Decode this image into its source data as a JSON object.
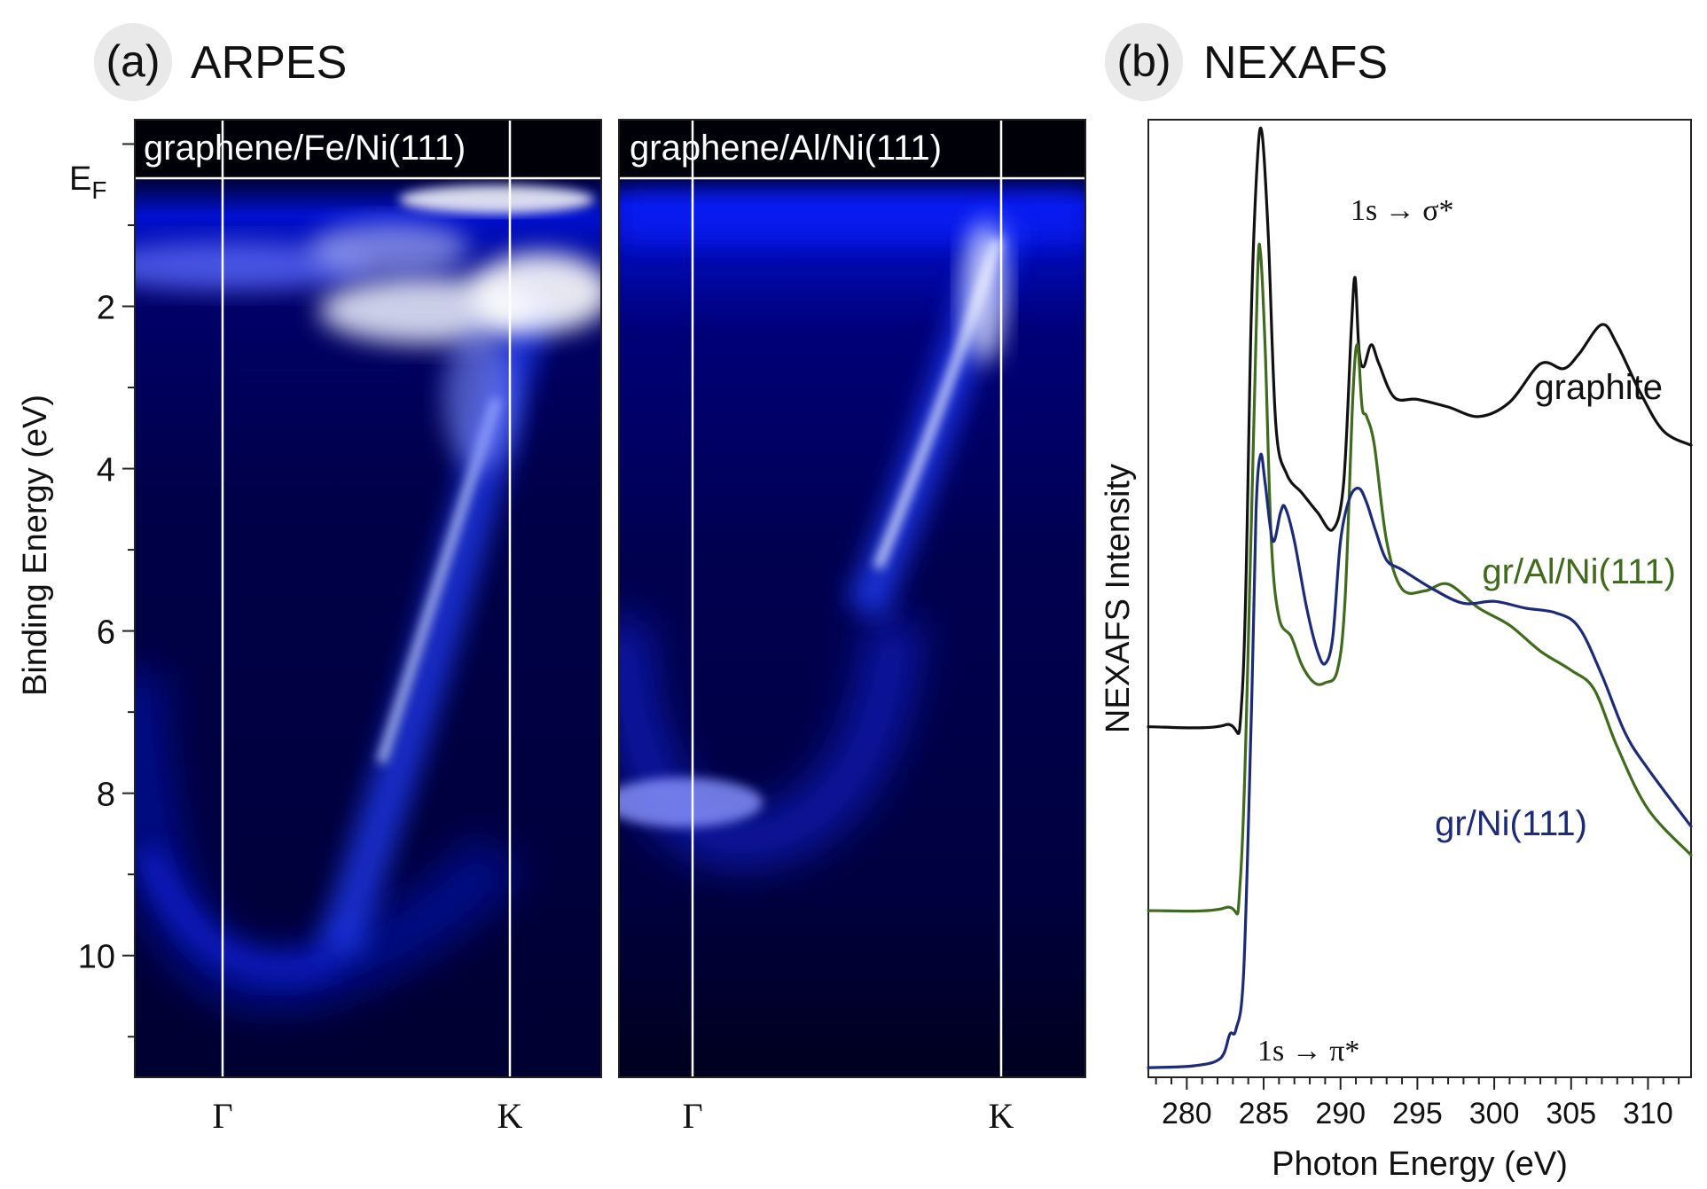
{
  "panel_a": {
    "letter": "(a)",
    "title": "ARPES",
    "ylabel": "Binding Energy (eV)",
    "ef_label": "E",
    "ef_sub": "F",
    "y_ticks": [
      "2",
      "4",
      "6",
      "8",
      "10"
    ],
    "subpanels": [
      {
        "label": "graphene/Fe/Ni(111)",
        "k_labels": [
          "Γ",
          "K"
        ]
      },
      {
        "label": "graphene/Al/Ni(111)",
        "k_labels": [
          "Γ",
          "K"
        ]
      }
    ]
  },
  "panel_b": {
    "letter": "(b)",
    "title": "NEXAFS",
    "annotation_sigma": "1s → σ*",
    "annotation_pi": "1s → π*"
  },
  "chart_data": [
    {
      "type": "heatmap",
      "title": "graphene/Fe/Ni(111)",
      "xlabel": "",
      "ylabel": "Binding Energy (eV)",
      "x_ticks": [
        "Γ",
        "K"
      ],
      "y_ticks": [
        2,
        4,
        6,
        8,
        10
      ],
      "ylim": [
        11.5,
        -0.3
      ],
      "colormap": [
        "#000010",
        "#0000d8",
        "#ffffff"
      ]
    },
    {
      "type": "heatmap",
      "title": "graphene/Al/Ni(111)",
      "xlabel": "",
      "ylabel": "Binding Energy (eV)",
      "x_ticks": [
        "Γ",
        "K"
      ],
      "y_ticks": [
        2,
        4,
        6,
        8,
        10
      ],
      "ylim": [
        11.5,
        -0.3
      ],
      "colormap": [
        "#000010",
        "#0000d8",
        "#ffffff"
      ]
    },
    {
      "type": "line",
      "xlabel": "Photon Energy (eV)",
      "ylabel": "NEXAFS Intensity",
      "xlim": [
        277.5,
        312.8
      ],
      "ylim": [
        0,
        10
      ],
      "x_ticks": [
        280,
        285,
        290,
        295,
        300,
        305,
        310
      ],
      "grid": false,
      "legend": "inline labels",
      "series": [
        {
          "name": "graphite",
          "color": "#111111",
          "x": [
            277.5,
            282.5,
            283.6,
            284.2,
            284.6,
            284.9,
            285.3,
            285.8,
            286.5,
            287.5,
            288.5,
            289.5,
            290.2,
            290.7,
            290.95,
            291.2,
            291.5,
            292.0,
            292.5,
            293.5,
            295.0,
            297.0,
            299.0,
            301.0,
            303.0,
            304.5,
            305.5,
            307.0,
            308.0,
            309.5,
            311.0,
            312.8
          ],
          "y": [
            3.66,
            3.68,
            4.0,
            8.0,
            9.6,
            9.85,
            8.8,
            6.8,
            6.3,
            6.1,
            5.9,
            5.72,
            6.2,
            7.8,
            8.35,
            7.6,
            7.42,
            7.65,
            7.45,
            7.1,
            7.08,
            7.0,
            6.9,
            7.05,
            7.45,
            7.4,
            7.55,
            7.86,
            7.65,
            7.15,
            6.75,
            6.6
          ]
        },
        {
          "name": "gr/Al/Ni(111)",
          "color": "#3f6b1c",
          "x": [
            277.5,
            282.5,
            283.5,
            284.2,
            284.6,
            284.8,
            285.1,
            285.5,
            286.0,
            286.8,
            287.5,
            288.3,
            289.0,
            289.8,
            290.3,
            290.8,
            291.1,
            291.4,
            291.7,
            292.2,
            293.0,
            294.0,
            295.5,
            297.0,
            299.0,
            301.0,
            303.0,
            305.0,
            306.5,
            308.0,
            310.0,
            312.8
          ],
          "y": [
            1.74,
            1.77,
            2.1,
            5.8,
            8.35,
            8.6,
            7.6,
            5.6,
            4.8,
            4.6,
            4.3,
            4.12,
            4.12,
            4.25,
            5.0,
            7.1,
            7.65,
            7.0,
            6.9,
            6.6,
            5.6,
            5.1,
            5.08,
            5.15,
            4.9,
            4.72,
            4.45,
            4.25,
            4.05,
            3.45,
            2.8,
            2.32
          ]
        },
        {
          "name": "gr/Ni(111)",
          "color": "#1c2a7a",
          "x": [
            277.5,
            280.5,
            282.2,
            282.8,
            283.2,
            283.7,
            284.2,
            284.5,
            284.8,
            285.1,
            285.6,
            286.1,
            286.4,
            287.0,
            287.8,
            288.5,
            289.0,
            289.5,
            290.0,
            290.6,
            291.2,
            291.7,
            292.3,
            293.0,
            294.0,
            296.0,
            298.0,
            300.0,
            302.0,
            304.0,
            305.5,
            307.0,
            308.5,
            310.0,
            312.8
          ],
          "y": [
            0.1,
            0.12,
            0.2,
            0.45,
            0.5,
            1.1,
            3.8,
            5.9,
            6.5,
            6.2,
            5.6,
            5.9,
            5.95,
            5.6,
            4.9,
            4.45,
            4.32,
            4.6,
            5.6,
            6.05,
            6.15,
            6.0,
            5.7,
            5.4,
            5.3,
            5.1,
            4.95,
            4.97,
            4.9,
            4.85,
            4.7,
            4.2,
            3.6,
            3.22,
            2.62
          ]
        }
      ]
    }
  ]
}
